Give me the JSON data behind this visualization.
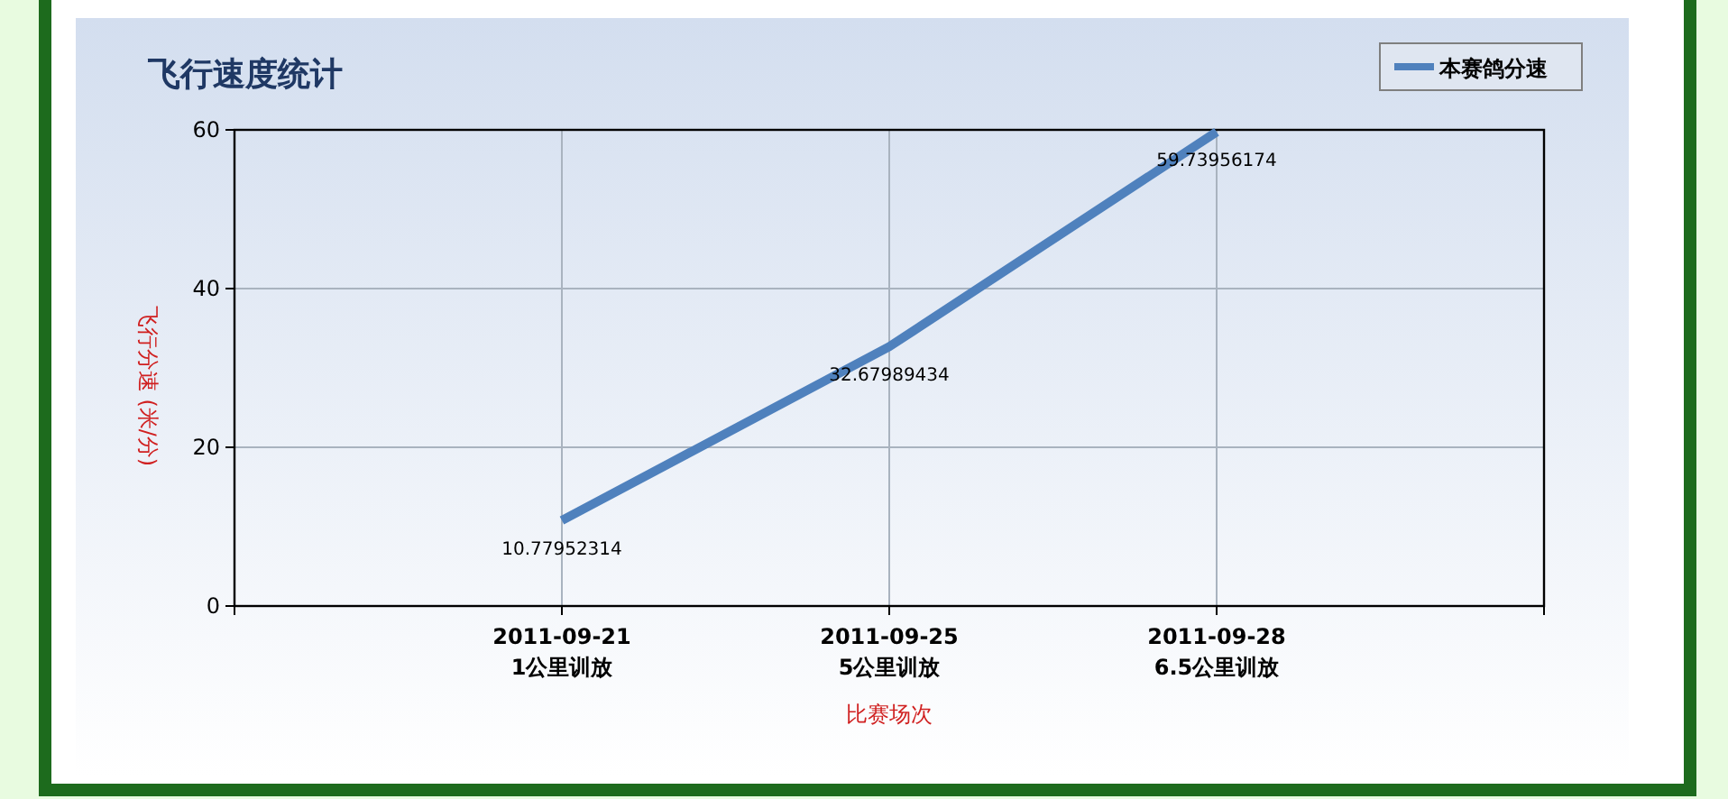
{
  "chart_data": {
    "type": "line",
    "title": "飞行速度统计",
    "xlabel": "比赛场次",
    "ylabel": "飞行分速 (米/分)",
    "categories": [
      null,
      "2011-09-21\n1公里训放",
      "2011-09-25\n5公里训放",
      "2011-09-28\n6.5公里训放",
      null
    ],
    "series": [
      {
        "name": "本赛鸽分速",
        "color": "#4f81bd",
        "values": [
          null,
          10.77952314,
          32.67989434,
          59.73956174,
          null
        ]
      }
    ],
    "ylim": [
      0,
      60
    ],
    "yticks": [
      0,
      20,
      40,
      60
    ],
    "grid": true,
    "legend": "top right",
    "data_labels": true,
    "marker": "none",
    "line_style": "solid"
  }
}
